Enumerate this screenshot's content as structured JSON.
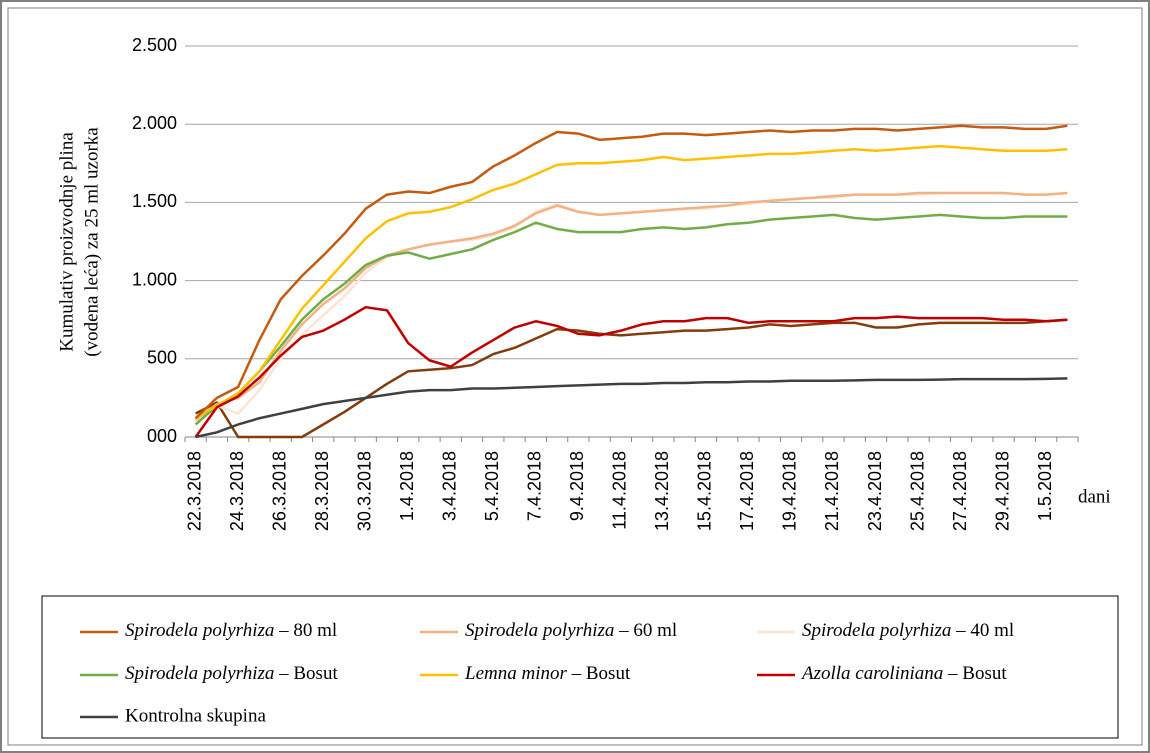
{
  "chart_data": {
    "type": "line",
    "y_label": [
      "Kumulativ proizvodnje plina",
      "(vodena leća) za 25 ml uzorka"
    ],
    "x_label": "dani",
    "categories": [
      "22.3.2018",
      null,
      "24.3.2018",
      null,
      "26.3.2018",
      null,
      "28.3.2018",
      null,
      "30.3.2018",
      null,
      "1.4.2018",
      null,
      "3.4.2018",
      null,
      "5.4.2018",
      null,
      "7.4.2018",
      null,
      "9.4.2018",
      null,
      "11.4.2018",
      null,
      "13.4.2018",
      null,
      "15.4.2018",
      null,
      "17.4.2018",
      null,
      "19.4.2018",
      null,
      "21.4.2018",
      null,
      "23.4.2018",
      null,
      "25.4.2018",
      null,
      "27.4.2018",
      null,
      "29.4.2018",
      null,
      "1.5.2018",
      null
    ],
    "ylim": [
      0,
      2500
    ],
    "yticks": [
      {
        "value": 0,
        "label": "000"
      },
      500,
      {
        "value": 1000,
        "label": "1.000"
      },
      {
        "value": 1500,
        "label": "1.500"
      },
      {
        "value": 2000,
        "label": "2.000"
      },
      {
        "value": 2500,
        "label": "2.500"
      }
    ],
    "grid": true,
    "series": [
      {
        "name": "Spirodela polyrhiza – 80 ml",
        "color": "#c55a11",
        "values": [
          120,
          250,
          320,
          620,
          880,
          1030,
          1160,
          1300,
          1460,
          1550,
          1570,
          1560,
          1600,
          1630,
          1730,
          1800,
          1880,
          1950,
          1940,
          1900,
          1910,
          1920,
          1940,
          1940,
          1930,
          1940,
          1950,
          1960,
          1950,
          1960,
          1960,
          1970,
          1970,
          1960,
          1970,
          1980,
          1990,
          1980,
          1980,
          1970,
          1970,
          1990
        ]
      },
      {
        "name": "Spirodela polyrhiza – 60 ml",
        "color": "#f4b183",
        "values": [
          110,
          210,
          250,
          350,
          550,
          720,
          850,
          950,
          1080,
          1160,
          1200,
          1230,
          1250,
          1270,
          1300,
          1350,
          1430,
          1480,
          1440,
          1420,
          1430,
          1440,
          1450,
          1460,
          1470,
          1480,
          1500,
          1510,
          1520,
          1530,
          1540,
          1550,
          1550,
          1550,
          1560,
          1560,
          1560,
          1560,
          1560,
          1550,
          1550,
          1560
        ]
      },
      {
        "name": "Spirodela polyrhiza – 40 ml",
        "color": "#fbe5d6",
        "values": [
          100,
          200,
          150,
          300,
          500,
          650,
          780,
          900,
          1050,
          1150,
          1200,
          1230,
          1250,
          1260,
          1290,
          1340,
          1440,
          1490,
          1440,
          1420,
          1430,
          1440,
          1450,
          1460,
          1460,
          1480,
          1490,
          1510,
          1520,
          1530,
          1530,
          1550,
          1550,
          1550,
          1550,
          1560,
          1560,
          1560,
          1560,
          1550,
          1550,
          1560
        ]
      },
      {
        "name": "Spirodela polyrhiza – Bosut",
        "color": "#70ad47",
        "values": [
          80,
          200,
          280,
          420,
          580,
          750,
          880,
          980,
          1100,
          1160,
          1180,
          1140,
          1170,
          1200,
          1260,
          1310,
          1370,
          1330,
          1310,
          1310,
          1310,
          1330,
          1340,
          1330,
          1340,
          1360,
          1370,
          1390,
          1400,
          1410,
          1420,
          1400,
          1390,
          1400,
          1410,
          1420,
          1410,
          1400,
          1400,
          1410,
          1410,
          1410
        ]
      },
      {
        "name": "Lemna minor – Bosut",
        "color": "#ffc000",
        "values": [
          120,
          200,
          280,
          420,
          620,
          820,
          970,
          1120,
          1270,
          1380,
          1430,
          1440,
          1470,
          1520,
          1580,
          1620,
          1680,
          1740,
          1750,
          1750,
          1760,
          1770,
          1790,
          1770,
          1780,
          1790,
          1800,
          1810,
          1810,
          1820,
          1830,
          1840,
          1830,
          1840,
          1850,
          1860,
          1850,
          1840,
          1830,
          1830,
          1830,
          1840
        ]
      },
      {
        "name": "Azolla caroliniana – Bosut",
        "color": "#c00000",
        "values": [
          0,
          190,
          260,
          380,
          520,
          640,
          680,
          750,
          830,
          810,
          600,
          490,
          450,
          540,
          620,
          700,
          740,
          710,
          660,
          650,
          680,
          720,
          740,
          740,
          760,
          760,
          730,
          740,
          740,
          740,
          740,
          760,
          760,
          770,
          760,
          760,
          760,
          760,
          750,
          750,
          740,
          750
        ]
      },
      {
        "name": "Kontrolna skupina",
        "color": "#404040",
        "values": [
          0,
          30,
          80,
          120,
          150,
          180,
          210,
          230,
          250,
          270,
          290,
          300,
          300,
          310,
          310,
          315,
          320,
          325,
          330,
          335,
          340,
          340,
          345,
          345,
          350,
          350,
          355,
          355,
          360,
          360,
          360,
          362,
          365,
          365,
          365,
          367,
          370,
          370,
          370,
          370,
          372,
          375
        ]
      },
      {
        "name": null,
        "color": "#843c0c",
        "values": [
          150,
          220,
          0,
          0,
          0,
          0,
          80,
          160,
          250,
          340,
          420,
          430,
          440,
          460,
          530,
          570,
          630,
          690,
          680,
          660,
          650,
          660,
          670,
          680,
          680,
          690,
          700,
          720,
          710,
          720,
          730,
          730,
          700,
          700,
          720,
          730,
          730,
          730,
          730,
          730,
          740,
          750
        ]
      }
    ]
  }
}
